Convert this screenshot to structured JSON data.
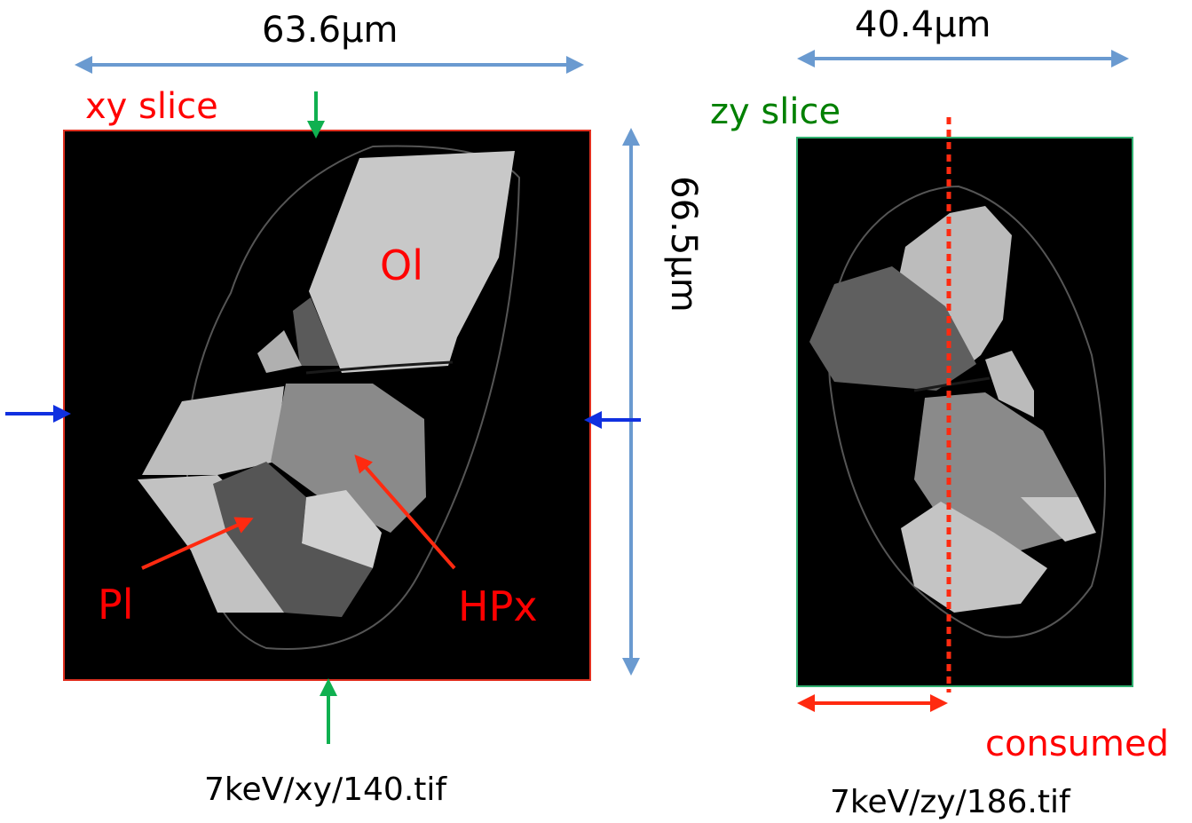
{
  "xy_panel": {
    "title": "xy slice",
    "width_label": "63.6µm",
    "height_label": "66.5µm",
    "phase_labels": {
      "ol": "Ol",
      "pl": "Pl",
      "hpx": "HPx"
    },
    "filename": "7keV/xy/140.tif"
  },
  "zy_panel": {
    "title": "zy slice",
    "width_label": "40.4µm",
    "consumed_label": "consumed",
    "filename": "7keV/zy/186.tif"
  },
  "colors": {
    "dimension_arrow": "#6a9ad0",
    "xy_frame": "#e03020",
    "zy_frame": "#30b070",
    "marker_green": "#10b050",
    "marker_blue": "#1030e0",
    "annotation_red": "#ff2a10",
    "label_red": "#ff0000",
    "label_green": "#008000"
  }
}
